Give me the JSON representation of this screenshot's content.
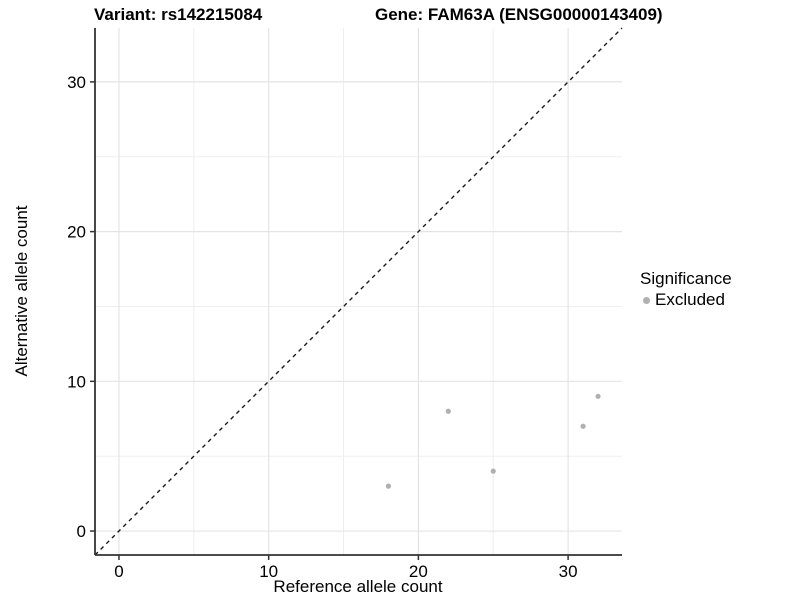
{
  "header": {
    "title_left": "Variant: rs142215084",
    "title_right": "Gene: FAM63A (ENSG00000143409)"
  },
  "chart_data": {
    "type": "scatter",
    "title": "Variant: rs142215084 — Gene: FAM63A (ENSG00000143409)",
    "xlabel": "Reference allele count",
    "ylabel": "Alternative allele count",
    "xlim": [
      -1.6,
      33.6
    ],
    "ylim": [
      -1.6,
      33.6
    ],
    "x_ticks": [
      0,
      10,
      20,
      30
    ],
    "y_ticks": [
      0,
      10,
      20,
      30
    ],
    "x_minor_ticks": [
      5,
      15,
      25
    ],
    "y_minor_ticks": [
      5,
      15,
      25
    ],
    "grid": true,
    "legend": {
      "position": "right",
      "title": "Significance",
      "entries": [
        {
          "label": "Excluded",
          "color": "#b0b0b0"
        }
      ]
    },
    "series": [
      {
        "name": "Excluded",
        "color": "#b0b0b0",
        "points": [
          [
            18,
            3
          ],
          [
            22,
            8
          ],
          [
            25,
            4
          ],
          [
            31,
            7
          ],
          [
            32,
            9
          ]
        ]
      }
    ],
    "reference_line": {
      "type": "identity",
      "style": "dashed",
      "color": "#1a1a1a",
      "from": [
        -1.6,
        -1.6
      ],
      "to": [
        33.6,
        33.6
      ]
    }
  },
  "colors": {
    "background": "#ffffff",
    "grid_major": "#e4e4e4",
    "grid_minor": "#efefef",
    "axis_line": "#333333",
    "tick_mark": "#333333",
    "text": "#000000",
    "point": "#b0b0b0",
    "dashed_line": "#1a1a1a"
  }
}
